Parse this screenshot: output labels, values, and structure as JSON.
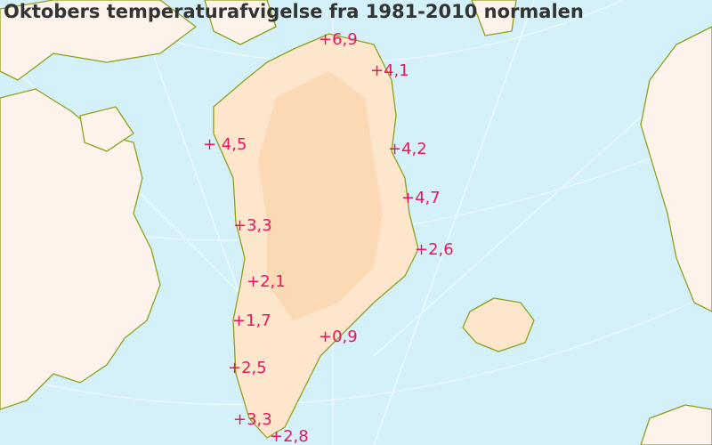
{
  "header": {
    "title": "Oktobers temperaturafvigelse fra 1981-2010 normalen"
  },
  "labels": [
    "+6,9",
    "+4,1",
    "+ 4,5",
    "+4,2",
    "+4,7",
    "+3,3",
    "+2,6",
    "+2,1",
    "+1,7",
    "+0,9",
    "+2,5",
    "+3,3",
    "+2,8"
  ]
}
